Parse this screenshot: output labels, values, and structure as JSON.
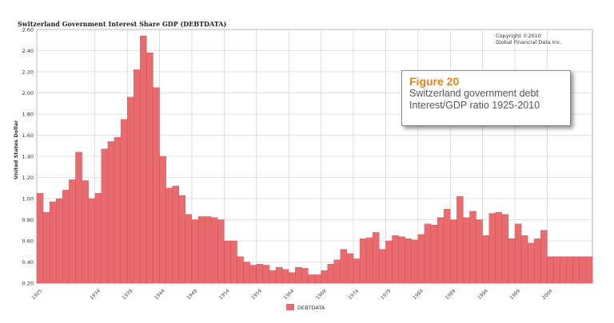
{
  "chart_data": {
    "type": "area",
    "title": "Switzerland Government Interest Share GDP (DEBTDATA)",
    "ylabel": "United States Dollar",
    "xlabel": "",
    "ylim": [
      0.2,
      2.6
    ],
    "yticks": [
      "2.60",
      "2.40",
      "2.20",
      "2.00",
      "1.80",
      "1.60",
      "1.40",
      "1.20",
      "1.00",
      "0.80",
      "0.60",
      "0.40",
      "0.20"
    ],
    "xticks": [
      "1925",
      "1934",
      "1939",
      "1944",
      "1949",
      "1954",
      "1959",
      "1964",
      "1969",
      "1974",
      "1979",
      "1984",
      "1989",
      "1994",
      "1999",
      "2004"
    ],
    "grid": true,
    "copyright_line1": "Copyright ©2010",
    "copyright_line2": "Global Financial Data Inc.",
    "legend": "DEBTDATA",
    "series_color": "#e96b6e",
    "x": [
      1925,
      1926,
      1927,
      1928,
      1929,
      1930,
      1931,
      1932,
      1933,
      1934,
      1935,
      1936,
      1937,
      1938,
      1939,
      1940,
      1941,
      1942,
      1943,
      1944,
      1945,
      1946,
      1947,
      1948,
      1949,
      1950,
      1951,
      1952,
      1953,
      1954,
      1955,
      1956,
      1957,
      1958,
      1959,
      1960,
      1961,
      1962,
      1963,
      1964,
      1965,
      1966,
      1967,
      1968,
      1969,
      1970,
      1971,
      1972,
      1973,
      1974,
      1975,
      1976,
      1977,
      1978,
      1979,
      1980,
      1981,
      1982,
      1983,
      1984,
      1985,
      1986,
      1987,
      1988,
      1989,
      1990,
      1991,
      1992,
      1993,
      1994,
      1995,
      1996,
      1997,
      1998,
      1999,
      2000,
      2001,
      2002,
      2003,
      2004,
      2005,
      2006,
      2007,
      2008,
      2009,
      2010
    ],
    "values": [
      1.05,
      0.87,
      0.97,
      1.0,
      1.08,
      1.18,
      1.44,
      1.17,
      1.0,
      1.05,
      1.47,
      1.54,
      1.58,
      1.75,
      1.96,
      2.22,
      2.54,
      2.38,
      2.05,
      1.4,
      1.1,
      1.12,
      1.03,
      0.85,
      0.8,
      0.83,
      0.83,
      0.82,
      0.8,
      0.6,
      0.6,
      0.45,
      0.4,
      0.37,
      0.38,
      0.37,
      0.32,
      0.35,
      0.33,
      0.3,
      0.35,
      0.34,
      0.28,
      0.28,
      0.32,
      0.38,
      0.42,
      0.52,
      0.48,
      0.43,
      0.62,
      0.63,
      0.68,
      0.52,
      0.6,
      0.65,
      0.64,
      0.62,
      0.61,
      0.66,
      0.76,
      0.75,
      0.82,
      0.9,
      0.8,
      1.02,
      0.82,
      0.88,
      0.8,
      0.65,
      0.86,
      0.87,
      0.85,
      0.62,
      0.76,
      0.65,
      0.58,
      0.62,
      0.7,
      0.45,
      0.45,
      0.45,
      0.45,
      0.45,
      0.45,
      0.45
    ]
  },
  "figure_box": {
    "label": "Figure 20",
    "caption": "Switzerland government debt Interest/GDP ratio 1925-2010"
  }
}
